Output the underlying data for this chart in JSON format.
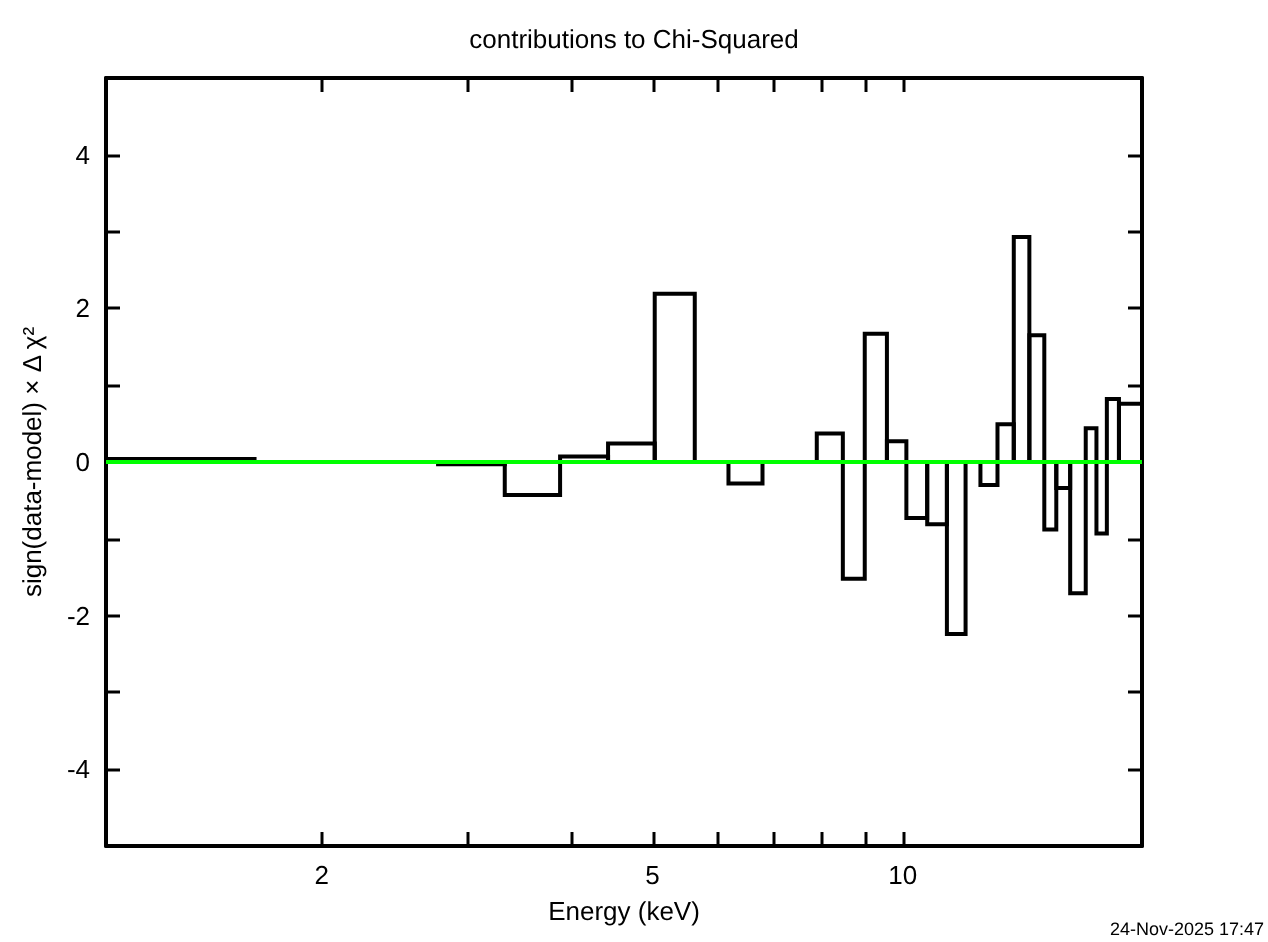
{
  "chart_data": {
    "type": "histogram",
    "title": "contributions to Chi-Squared",
    "xlabel": "Energy (keV)",
    "ylabel": "sign(data-model) × Δ χ²",
    "bins": [
      1.1,
      1.66,
      1.92,
      2.21,
      2.5,
      2.76,
      3.32,
      3.87,
      4.42,
      5.03,
      5.62,
      6.17,
      6.78,
      7.88,
      8.47,
      9.0,
      9.57,
      10.1,
      10.7,
      11.3,
      11.9,
      12.4,
      13.0,
      13.6,
      14.2,
      14.8,
      15.3,
      15.9,
      16.6,
      17.1,
      17.6,
      18.2,
      19.4
    ],
    "values": [
      0.04,
      0,
      0,
      0,
      0,
      -0.03,
      -0.43,
      0.07,
      0.24,
      2.19,
      0,
      -0.28,
      0,
      0.37,
      -1.52,
      1.67,
      0.27,
      -0.73,
      -0.81,
      -2.24,
      0,
      -0.3,
      0.49,
      2.93,
      1.65,
      -0.88,
      -0.34,
      -1.71,
      0.44,
      -0.93,
      0.82,
      0.76
    ],
    "color": "#000000",
    "log": "x",
    "xlim": [
      1.1,
      19.4
    ],
    "xticks": [
      2,
      {
        "value": 3,
        "label": null
      },
      {
        "value": 4,
        "label": null
      },
      5,
      {
        "value": 6,
        "label": null
      },
      {
        "value": 7,
        "label": null
      },
      {
        "value": 8,
        "label": null
      },
      {
        "value": 9,
        "label": null
      },
      10
    ],
    "ylim": [
      -5,
      5
    ],
    "yticks": [
      {
        "value": -5,
        "label": null
      },
      -4,
      {
        "value": -3,
        "label": null
      },
      -2,
      {
        "value": -1,
        "label": null
      },
      0,
      {
        "value": 1,
        "label": null
      },
      2,
      {
        "value": 3,
        "label": null
      },
      4,
      {
        "value": 5,
        "label": null
      }
    ],
    "grid": false,
    "ref_lines": [
      {
        "axis": "y",
        "value": 0,
        "color": "#00ff00"
      }
    ],
    "annotations": [
      "24-Nov-2025 17:47"
    ]
  }
}
